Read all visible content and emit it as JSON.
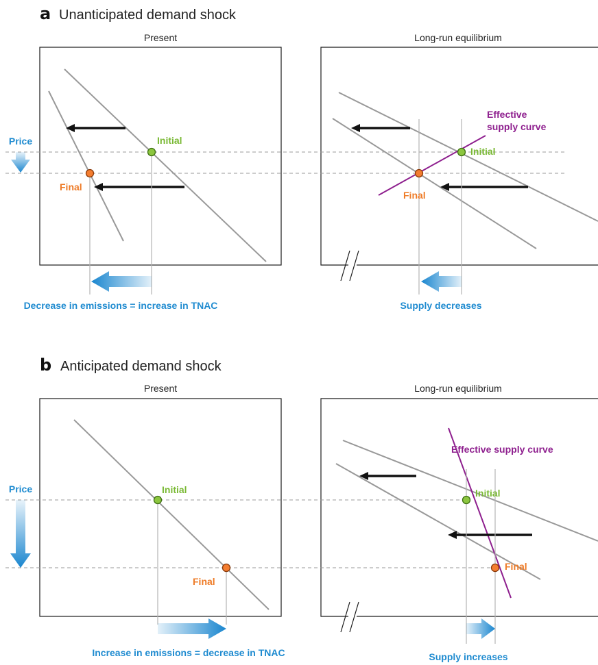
{
  "panel_a": {
    "letter": "a",
    "heading": "Unanticipated demand shock",
    "left_title": "Present",
    "right_title": "Long-run equilibrium",
    "price_label": "Price",
    "initial_label": "Initial",
    "final_label": "Final",
    "effective_supply_line1": "Effective",
    "effective_supply_line2": "supply curve",
    "left_caption": "Decrease in emissions = increase in TNAC",
    "right_caption": "Supply decreases"
  },
  "panel_b": {
    "letter": "b",
    "heading": "Anticipated demand shock",
    "left_title": "Present",
    "right_title": "Long-run equilibrium",
    "price_label": "Price",
    "initial_label": "Initial",
    "final_label": "Final",
    "effective_supply": "Effective supply curve",
    "left_caption": "Increase in emissions = decrease in TNAC",
    "right_caption": "Supply increases"
  },
  "colors": {
    "initial": "#8cc63f",
    "final": "#f47d30",
    "annotation_blue": "#1f8bd0",
    "effective_supply": "#8e1f8e",
    "curve": "#999999",
    "shift_arrow": "#111111"
  }
}
